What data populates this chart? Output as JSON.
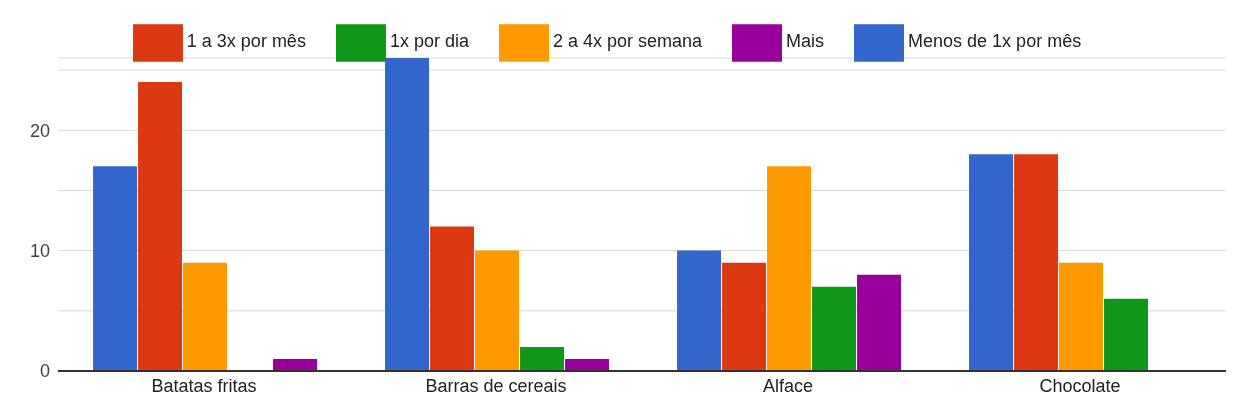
{
  "chart_data": {
    "type": "bar",
    "categories": [
      "Batatas fritas",
      "Barras de cereais",
      "Alface",
      "Chocolate"
    ],
    "series": [
      {
        "name": "Menos de 1x por mês",
        "color": "#3366cc",
        "values": [
          17,
          26,
          10,
          18
        ]
      },
      {
        "name": "1 a 3x por mês",
        "color": "#dc3912",
        "values": [
          24,
          12,
          9,
          18
        ]
      },
      {
        "name": "2 a 4x por semana",
        "color": "#ff9900",
        "values": [
          9,
          10,
          17,
          9
        ]
      },
      {
        "name": "1x por dia",
        "color": "#109618",
        "values": [
          0,
          2,
          7,
          6
        ]
      },
      {
        "name": "Mais",
        "color": "#990099",
        "values": [
          1,
          1,
          8,
          null
        ]
      }
    ],
    "ylim": [
      0,
      26
    ],
    "yticks": [
      0,
      {
        "value": 5,
        "label": null
      },
      10,
      {
        "value": 15,
        "label": null
      },
      20,
      {
        "value": 25,
        "label": null
      }
    ],
    "grid": "y",
    "legend": "top"
  }
}
